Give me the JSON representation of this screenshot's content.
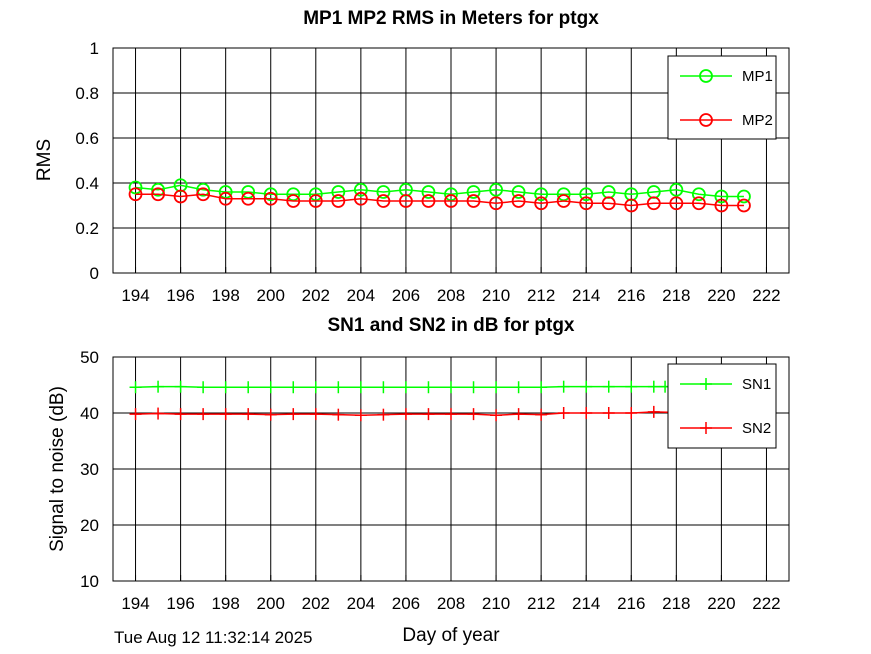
{
  "footer": {
    "timestamp": "Tue Aug 12 11:32:14 2025",
    "xlabel": "Day of year"
  },
  "chart_data": [
    {
      "type": "line",
      "title": "MP1 MP2 RMS in Meters for ptgx",
      "xlabel": "",
      "ylabel": "RMS",
      "xlim": [
        193,
        223
      ],
      "ylim": [
        0,
        1
      ],
      "xticks": [
        194,
        196,
        198,
        200,
        202,
        204,
        206,
        208,
        210,
        212,
        214,
        216,
        218,
        220,
        222
      ],
      "yticks": [
        0,
        0.2,
        0.4,
        0.6,
        0.8,
        1
      ],
      "ytick_labels": [
        "0",
        "0.2",
        "0.4",
        "0.6",
        "0.8",
        "1"
      ],
      "grid": true,
      "legend_position": "top-right",
      "x": [
        194,
        195,
        196,
        197,
        198,
        199,
        200,
        201,
        202,
        203,
        204,
        205,
        206,
        207,
        208,
        209,
        210,
        211,
        212,
        213,
        214,
        215,
        216,
        217,
        218,
        219,
        220,
        221
      ],
      "series": [
        {
          "name": "MP1",
          "color": "#00ff00",
          "marker": "circle",
          "values": [
            0.38,
            0.37,
            0.39,
            0.37,
            0.36,
            0.36,
            0.35,
            0.35,
            0.35,
            0.36,
            0.37,
            0.36,
            0.37,
            0.36,
            0.35,
            0.36,
            0.37,
            0.36,
            0.35,
            0.35,
            0.35,
            0.36,
            0.35,
            0.36,
            0.37,
            0.35,
            0.34,
            0.34
          ]
        },
        {
          "name": "MP2",
          "color": "#ff0000",
          "marker": "circle",
          "values": [
            0.35,
            0.35,
            0.34,
            0.35,
            0.33,
            0.33,
            0.33,
            0.32,
            0.32,
            0.32,
            0.33,
            0.32,
            0.32,
            0.32,
            0.32,
            0.32,
            0.31,
            0.32,
            0.31,
            0.32,
            0.31,
            0.31,
            0.3,
            0.31,
            0.31,
            0.31,
            0.3,
            0.3
          ]
        }
      ]
    },
    {
      "type": "line",
      "title": "SN1 and SN2 in dB for ptgx",
      "xlabel": "",
      "ylabel": "Signal to noise (dB)",
      "xlim": [
        193,
        223
      ],
      "ylim": [
        10,
        50
      ],
      "xticks": [
        194,
        196,
        198,
        200,
        202,
        204,
        206,
        208,
        210,
        212,
        214,
        216,
        218,
        220,
        222
      ],
      "yticks": [
        10,
        20,
        30,
        40,
        50
      ],
      "ytick_labels": [
        "10",
        "20",
        "30",
        "40",
        "50"
      ],
      "grid": true,
      "legend_position": "top-right",
      "series": [
        {
          "name": "SN1",
          "color": "#00ff00",
          "marker": "plus",
          "x": [
            194,
            195,
            196,
            197,
            198,
            199,
            200,
            201,
            202,
            203,
            204,
            205,
            206,
            207,
            208,
            209,
            210,
            211,
            212,
            213,
            214,
            215,
            216,
            217,
            217.5,
            218,
            218.5,
            219,
            219.5,
            220,
            220.5,
            221
          ],
          "values": [
            44.6,
            44.7,
            44.7,
            44.6,
            44.6,
            44.6,
            44.6,
            44.6,
            44.6,
            44.6,
            44.6,
            44.6,
            44.6,
            44.6,
            44.6,
            44.6,
            44.6,
            44.6,
            44.6,
            44.7,
            44.7,
            44.7,
            44.7,
            44.7,
            44.7,
            44.7,
            44.7,
            44.7,
            44.7,
            44.7,
            44.7,
            44.7
          ]
        },
        {
          "name": "SN2",
          "color": "#ff0000",
          "marker": "plus",
          "x": [
            194,
            195,
            196,
            197,
            198,
            199,
            200,
            201,
            202,
            203,
            204,
            205,
            206,
            207,
            208,
            209,
            210,
            211,
            212,
            213,
            214,
            215,
            216,
            217,
            218,
            219,
            220,
            221
          ],
          "values": [
            39.8,
            39.9,
            39.8,
            39.8,
            39.8,
            39.8,
            39.7,
            39.8,
            39.8,
            39.7,
            39.6,
            39.7,
            39.8,
            39.8,
            39.8,
            39.8,
            39.6,
            39.8,
            39.7,
            40.0,
            40.0,
            40.0,
            40.0,
            40.2,
            40.1,
            40.0,
            40.1,
            40.0
          ]
        }
      ]
    }
  ]
}
